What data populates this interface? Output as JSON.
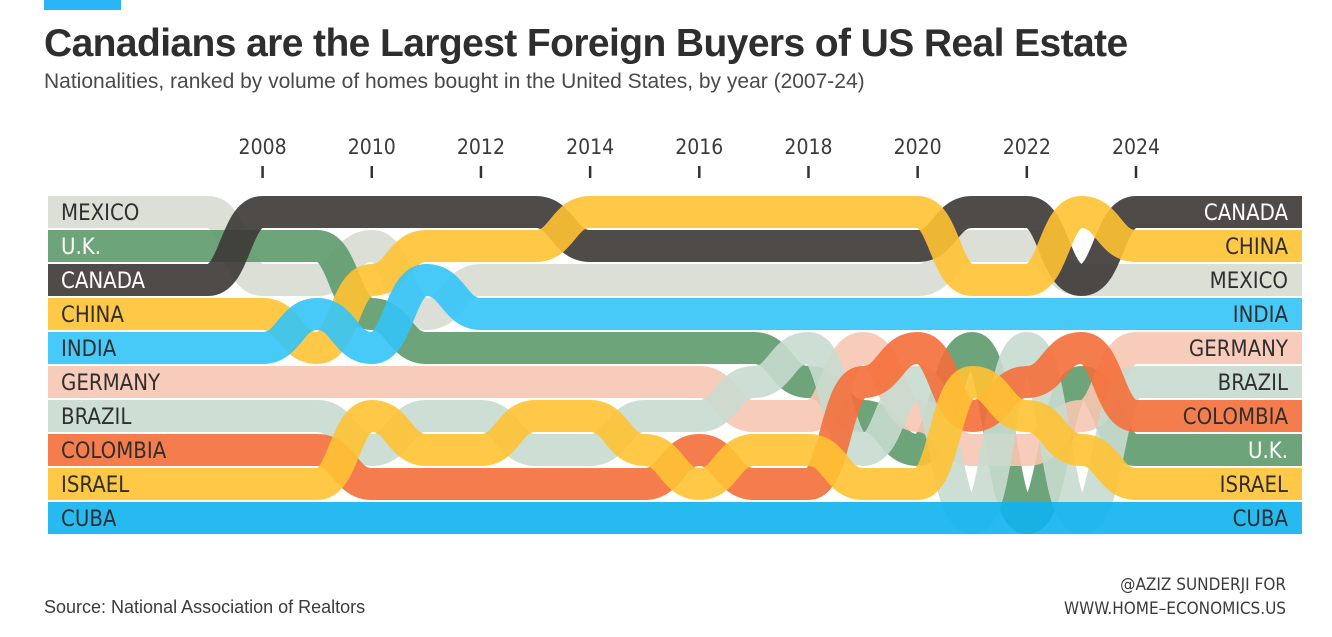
{
  "header": {
    "title": "Canadians are the Largest Foreign Buyers of US Real Estate",
    "subtitle": "Nationalities, ranked by volume of homes bought in the United States, by year (2007-24)"
  },
  "footer": {
    "source": "Source: National Association of Realtors",
    "credit_line1": "@AZIZ SUNDERJI FOR",
    "credit_line2": "WWW.HOME–ECONOMICS.US"
  },
  "colors": {
    "accent": "#29b6f6"
  },
  "chart_data": {
    "type": "bump",
    "x": [
      2007,
      2008,
      2009,
      2010,
      2011,
      2012,
      2013,
      2014,
      2015,
      2016,
      2017,
      2018,
      2019,
      2020,
      2021,
      2022,
      2023,
      2024
    ],
    "x_tick_labels": [
      "2008",
      "2010",
      "2012",
      "2014",
      "2016",
      "2018",
      "2020",
      "2022",
      "2024"
    ],
    "x_tick_values": [
      2008,
      2010,
      2012,
      2014,
      2016,
      2018,
      2020,
      2022,
      2024
    ],
    "y_direction": "rank 1 at top, rank 10 at bottom",
    "left_labels": [
      "MEXICO",
      "U.K.",
      "CANADA",
      "CHINA",
      "INDIA",
      "GERMANY",
      "BRAZIL",
      "COLOMBIA",
      "ISRAEL",
      "CUBA"
    ],
    "right_labels": [
      "CANADA",
      "CHINA",
      "MEXICO",
      "INDIA",
      "GERMANY",
      "BRAZIL",
      "COLOMBIA",
      "U.K.",
      "ISRAEL",
      "CUBA"
    ],
    "series": [
      {
        "name": "MEXICO",
        "color": "#d8dcd2",
        "ranks": [
          1,
          3,
          3,
          2,
          4,
          3,
          3,
          3,
          3,
          3,
          3,
          3,
          3,
          3,
          2,
          2,
          3,
          3
        ]
      },
      {
        "name": "U.K.",
        "color": "#5e9a6b",
        "ranks": [
          2,
          2,
          2,
          4,
          5,
          5,
          5,
          5,
          5,
          5,
          5,
          6,
          7,
          8,
          5,
          10,
          6,
          8
        ]
      },
      {
        "name": "CANADA",
        "color": "#3c3735",
        "ranks": [
          3,
          1,
          1,
          1,
          1,
          1,
          1,
          2,
          2,
          2,
          2,
          2,
          2,
          2,
          1,
          1,
          3,
          1
        ]
      },
      {
        "name": "CHINA",
        "color": "#ffc233",
        "ranks": [
          4,
          4,
          5,
          3,
          2,
          2,
          2,
          1,
          1,
          1,
          1,
          1,
          1,
          1,
          3,
          3,
          1,
          2
        ]
      },
      {
        "name": "INDIA",
        "color": "#33c4f7",
        "ranks": [
          5,
          5,
          4,
          5,
          3,
          4,
          4,
          4,
          4,
          4,
          4,
          4,
          4,
          4,
          4,
          4,
          4,
          4
        ]
      },
      {
        "name": "GERMANY",
        "color": "#f7c6b2",
        "ranks": [
          6,
          6,
          6,
          6,
          6,
          6,
          6,
          6,
          6,
          6,
          7,
          7,
          5,
          7,
          8,
          8,
          7,
          5
        ]
      },
      {
        "name": "BRAZIL",
        "color": "#c8dccf",
        "ranks": [
          7,
          7,
          7,
          8,
          7,
          7,
          8,
          8,
          7,
          7,
          6,
          5,
          8,
          6,
          10,
          5,
          10,
          6
        ]
      },
      {
        "name": "COLOMBIA",
        "color": "#f46f3a",
        "ranks": [
          8,
          8,
          8,
          9,
          9,
          9,
          9,
          9,
          9,
          8,
          9,
          9,
          6,
          5,
          7,
          6,
          5,
          7
        ]
      },
      {
        "name": "ISRAEL",
        "color": "#ffc233",
        "ranks": [
          9,
          9,
          9,
          7,
          8,
          8,
          7,
          7,
          8,
          9,
          8,
          8,
          9,
          9,
          6,
          7,
          8,
          9
        ]
      },
      {
        "name": "CUBA",
        "color": "#0fb3ef",
        "ranks": [
          10,
          10,
          10,
          10,
          10,
          10,
          10,
          10,
          10,
          10,
          10,
          10,
          10,
          10,
          10,
          10,
          10,
          10
        ]
      }
    ],
    "legend": "none",
    "grid": false
  }
}
